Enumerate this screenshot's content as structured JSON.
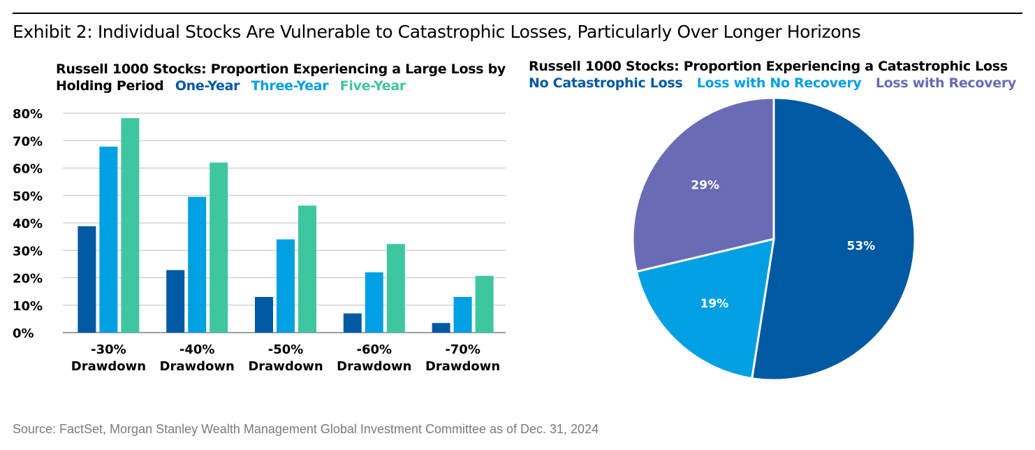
{
  "exhibit_title": "Exhibit 2: Individual Stocks Are Vulnerable to Catastrophic Losses, Particularly Over Longer Horizons",
  "source": "Source: FactSet, Morgan Stanley Wealth Management Global Investment Committee as of Dec. 31, 2024",
  "colors": {
    "one_year": "#0059a3",
    "three_year": "#00a0e3",
    "five_year": "#3ec6a0",
    "no_catastrophic": "#0059a3",
    "loss_no_recovery": "#00a0e3",
    "loss_with_recovery": "#6a6bb5",
    "grid": "#bfbfbf",
    "axis": "#7f7f7f"
  },
  "chart_data": [
    {
      "type": "bar",
      "title_line1": "Russell 1000 Stocks: Proportion Experiencing a Large Loss by",
      "title_line2": "Holding Period",
      "categories": [
        [
          "-30%",
          "Drawdown"
        ],
        [
          "-40%",
          "Drawdown"
        ],
        [
          "-50%",
          "Drawdown"
        ],
        [
          "-60%",
          "Drawdown"
        ],
        [
          "-70%",
          "Drawdown"
        ]
      ],
      "series": [
        {
          "name": "One-Year",
          "values": [
            38.8,
            22.8,
            13.0,
            7.0,
            3.5
          ]
        },
        {
          "name": "Three-Year",
          "values": [
            67.8,
            49.5,
            34.0,
            22.0,
            13.0
          ]
        },
        {
          "name": "Five-Year",
          "values": [
            78.2,
            62.0,
            46.3,
            32.3,
            20.7
          ]
        }
      ],
      "yticks": [
        "0%",
        "10%",
        "20%",
        "30%",
        "40%",
        "50%",
        "60%",
        "70%",
        "80%"
      ],
      "ylim": [
        0,
        80
      ],
      "grid": true
    },
    {
      "type": "pie",
      "title": "Russell 1000 Stocks: Proportion Experiencing a Catastrophic Loss",
      "slices": [
        {
          "name": "No Catastrophic Loss",
          "value": 53,
          "label": "53%"
        },
        {
          "name": "Loss with No Recovery",
          "value": 19,
          "label": "19%"
        },
        {
          "name": "Loss with Recovery",
          "value": 29,
          "label": "29%"
        }
      ]
    }
  ]
}
